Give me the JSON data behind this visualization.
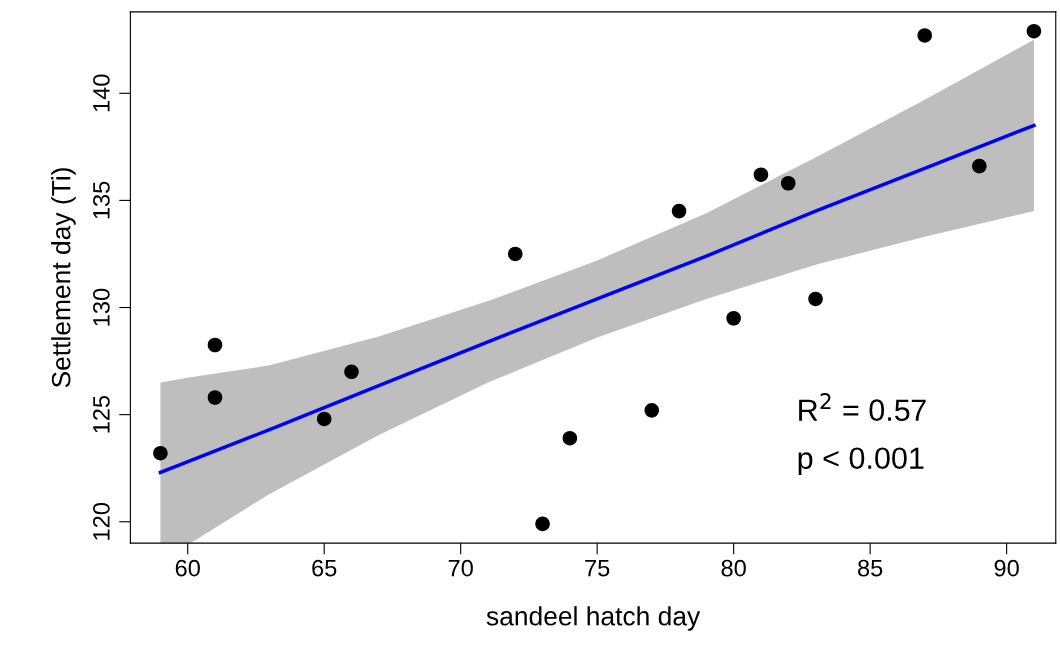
{
  "chart_data": {
    "type": "scatter",
    "xlabel": "sandeel hatch day",
    "ylabel": "Settlement day (Ti)",
    "xlim": [
      57.9,
      91.8
    ],
    "ylim": [
      119.0,
      143.8
    ],
    "xticks": [
      60,
      65,
      70,
      75,
      80,
      85,
      90
    ],
    "yticks": [
      120,
      125,
      130,
      135,
      140
    ],
    "grid": false,
    "series": [
      {
        "type": "line",
        "marker": "none",
        "color": "#0000ff",
        "x": [
          59,
          60.1,
          63,
          67,
          71,
          75,
          79,
          83,
          87,
          91
        ],
        "values": [
          122.3,
          122.85,
          124.3,
          126.35,
          128.4,
          130.4,
          132.4,
          134.5,
          136.5,
          138.5
        ],
        "lower": [
          119.0,
          119.0,
          121.3,
          124.05,
          126.5,
          128.6,
          130.4,
          132.0,
          133.3,
          134.5
        ],
        "upper": [
          126.5,
          126.75,
          127.3,
          128.65,
          130.3,
          132.2,
          134.4,
          137.0,
          139.7,
          142.5
        ]
      },
      {
        "marker": "circle",
        "color": "#000000",
        "x": [
          59,
          61,
          61,
          65,
          66,
          72,
          73,
          74,
          77,
          78,
          80,
          81,
          82,
          83,
          87,
          89,
          91
        ],
        "values": [
          123.2,
          128.25,
          125.8,
          124.8,
          127.0,
          132.5,
          119.9,
          123.9,
          125.2,
          134.5,
          129.5,
          136.2,
          135.8,
          130.4,
          142.7,
          136.6,
          142.9
        ]
      }
    ],
    "annotations": [
      "R$^{2}$ = 0.57",
      "p < 0.001"
    ]
  }
}
